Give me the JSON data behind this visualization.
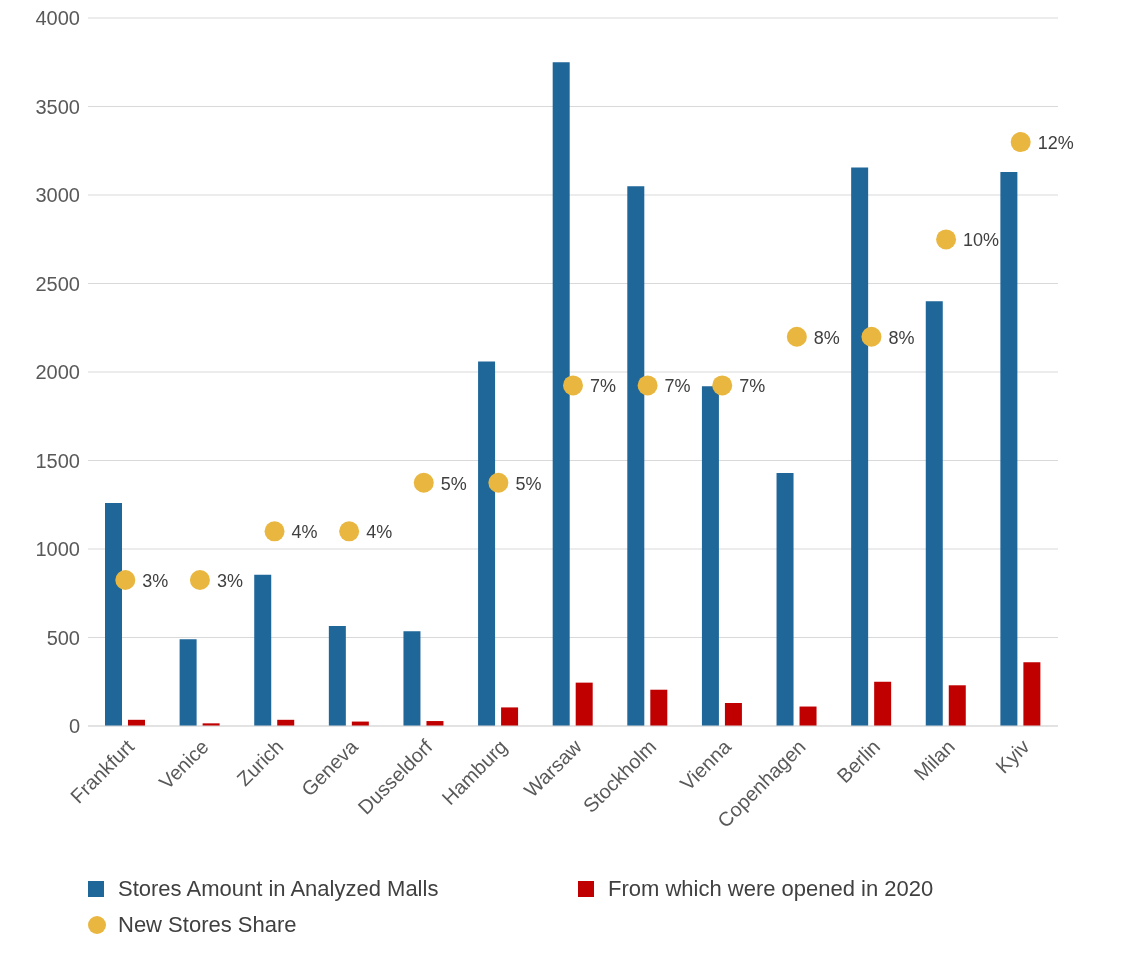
{
  "chart_data": {
    "type": "bar",
    "categories": [
      "Frankfurt",
      "Venice",
      "Zurich",
      "Geneva",
      "Dusseldorf",
      "Hamburg",
      "Warsaw",
      "Stockholm",
      "Vienna",
      "Copenhagen",
      "Berlin",
      "Milan",
      "Kyiv"
    ],
    "series": [
      {
        "name": "Stores Amount in Analyzed Malls",
        "color": "#1f6699",
        "values": [
          1260,
          490,
          855,
          565,
          535,
          2060,
          3750,
          3050,
          1920,
          1430,
          3155,
          2400,
          3130
        ]
      },
      {
        "name": "From which were opened in 2020",
        "color": "#c00000",
        "values": [
          35,
          15,
          35,
          25,
          28,
          105,
          245,
          205,
          130,
          110,
          250,
          230,
          360
        ]
      },
      {
        "name": "New Stores Share",
        "type": "scatter",
        "axis": "y2",
        "color": "#e9b740",
        "values": [
          3,
          3,
          4,
          4,
          5,
          5,
          7,
          7,
          7,
          8,
          8,
          10,
          12
        ],
        "value_labels": [
          "3%",
          "3%",
          "4%",
          "4%",
          "5%",
          "5%",
          "7%",
          "7%",
          "7%",
          "8%",
          "8%",
          "10%",
          "12%"
        ]
      }
    ],
    "ylim": [
      0,
      4000
    ],
    "yticks": [
      0,
      500,
      1000,
      1500,
      2000,
      2500,
      3000,
      3500,
      4000
    ],
    "y2lim": [
      0,
      14.55
    ],
    "grid": "y",
    "legend": "bottom",
    "marker": "circle"
  }
}
